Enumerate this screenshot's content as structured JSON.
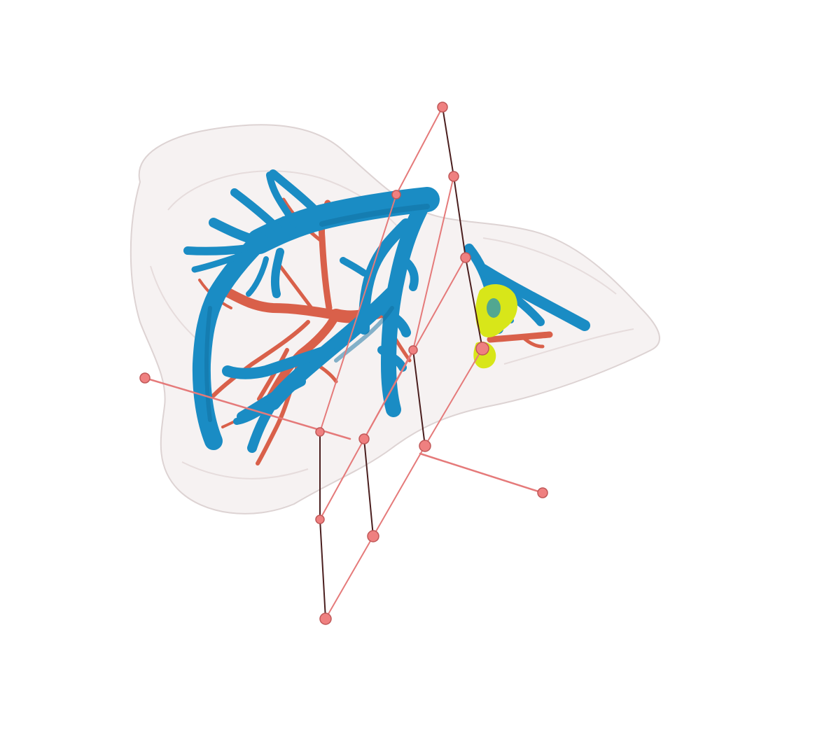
{
  "scene": {
    "kind": "3d-medical-render",
    "background_color": "#ffffff",
    "organ_color": "#f3eeee",
    "organ_edge_color": "#d9cfcf",
    "vessel_blue_color": "#1a8cc4",
    "vessel_blue_dark": "#0f6e9e",
    "vessel_red_color": "#d9604a",
    "lesion_color": "#d8e619",
    "plane_line_color": "#e57a7a",
    "plane_dark_line_color": "#4a1e1e",
    "handle_color": "#ef8080",
    "icons": [
      "liver-surface",
      "portal-vein",
      "hepatic-artery",
      "tumor-lesion",
      "cutting-plane",
      "control-handle"
    ]
  }
}
